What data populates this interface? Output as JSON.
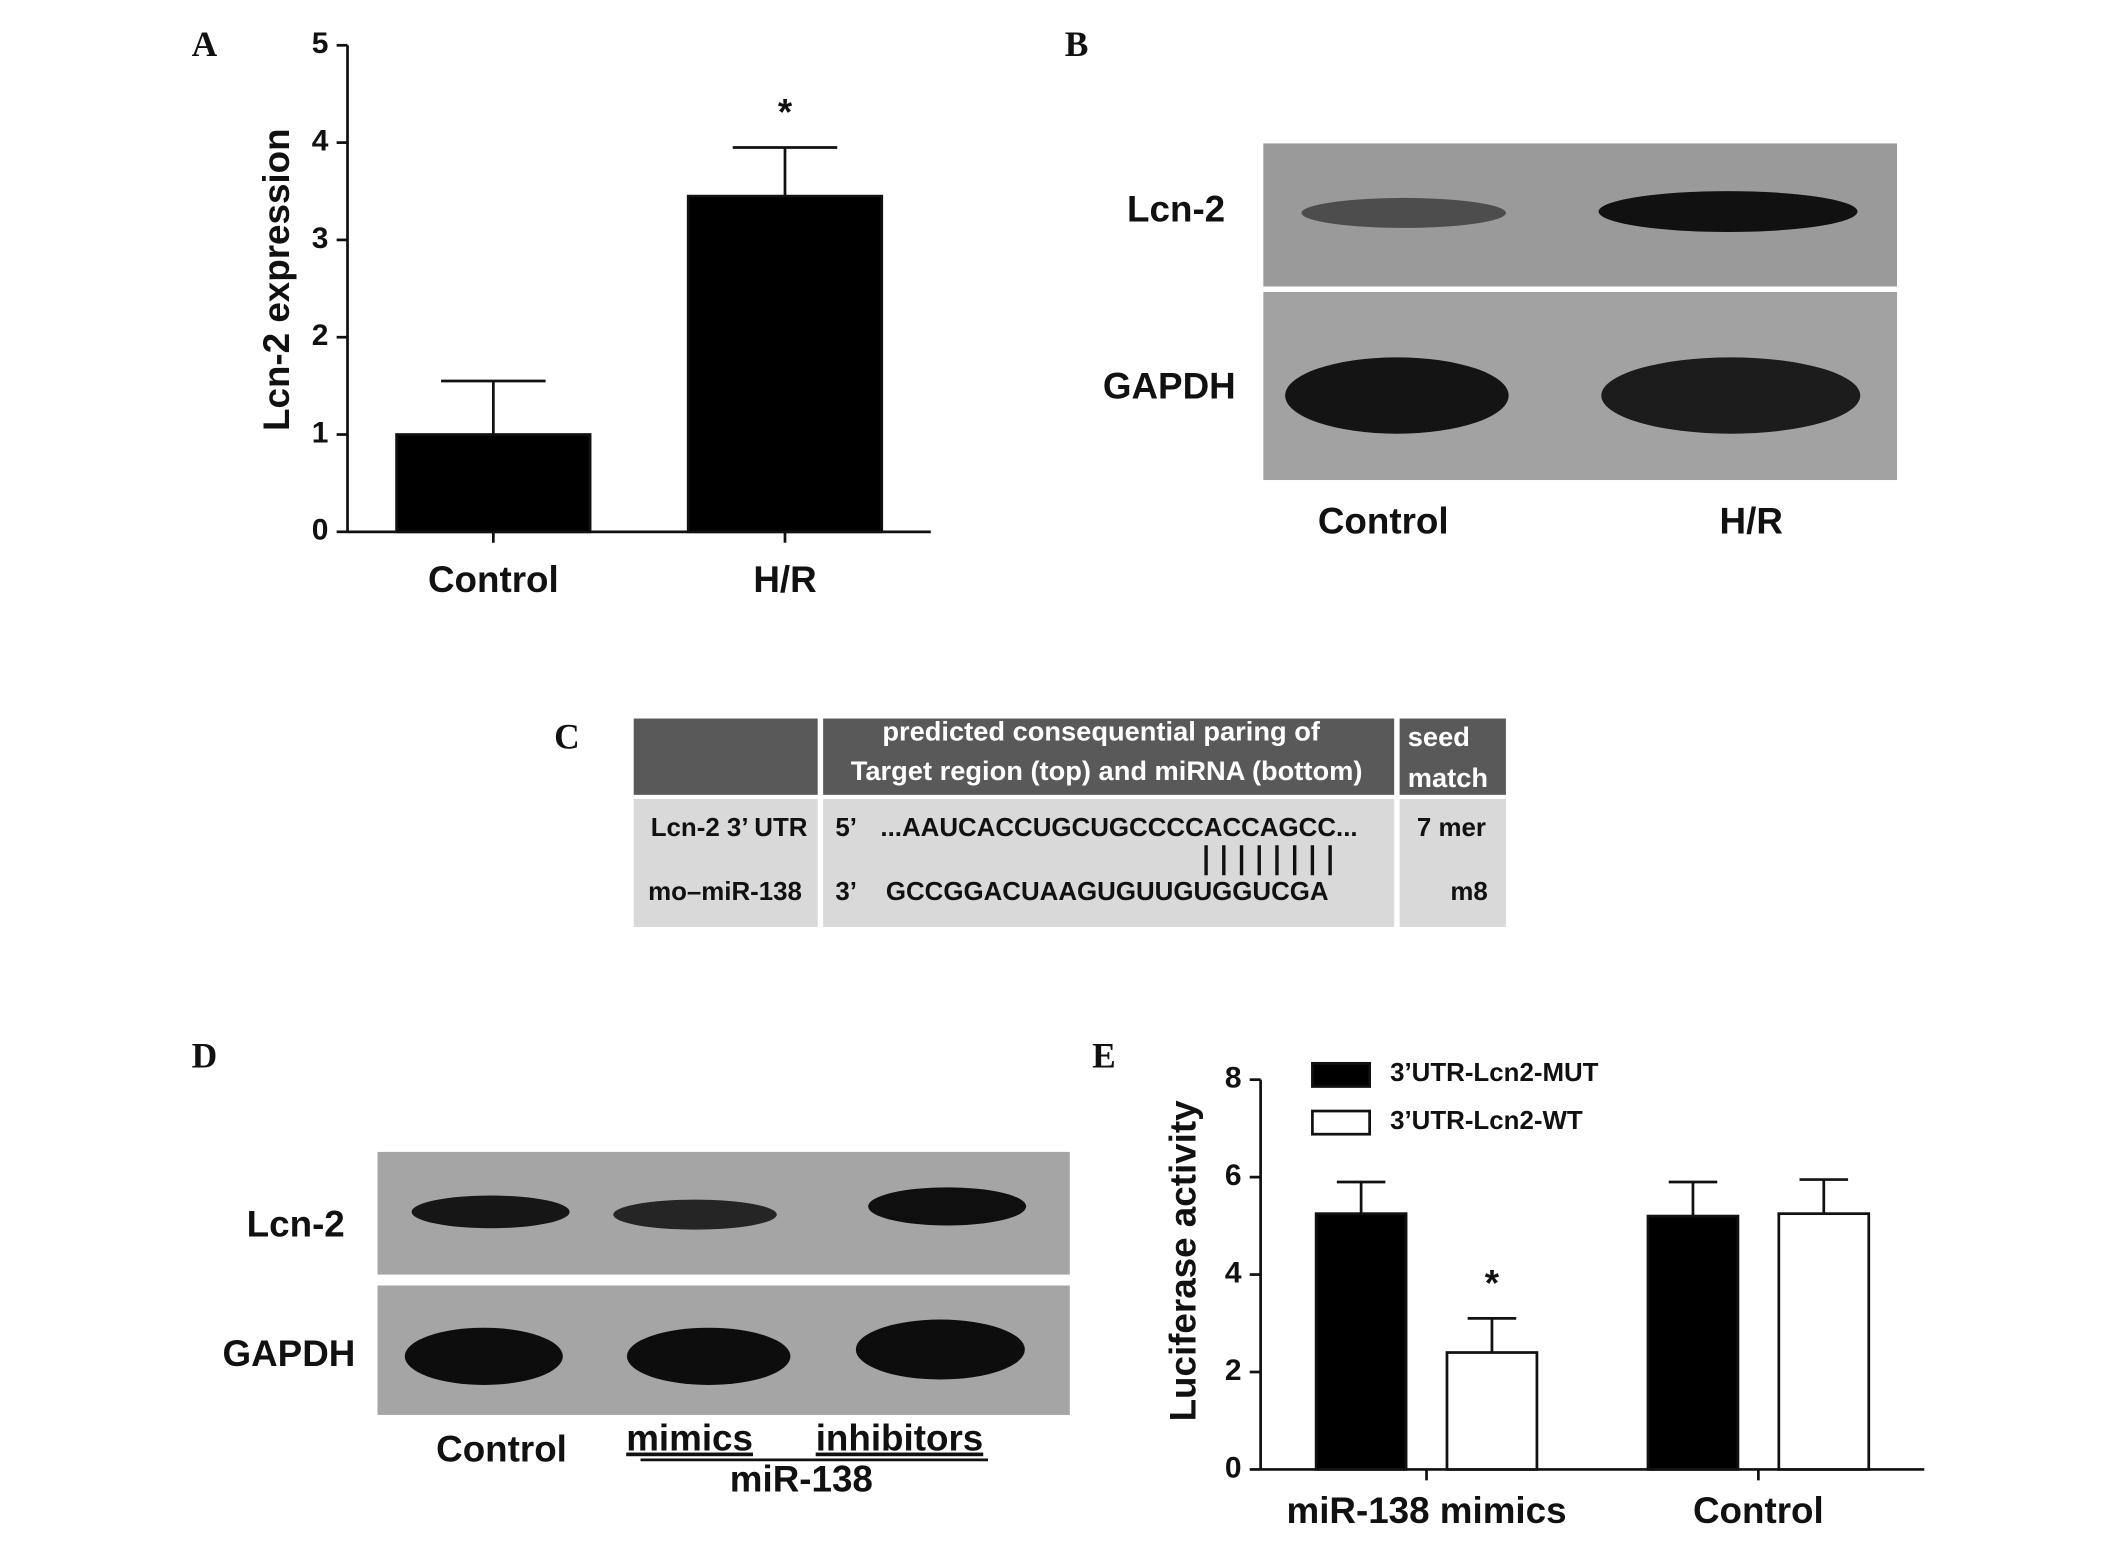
{
  "panels": [
    "A",
    "B",
    "C",
    "D",
    "E"
  ],
  "chart_data": [
    {
      "type": "bar",
      "categories": [
        "Control",
        "H/R"
      ],
      "values": [
        1.0,
        3.45
      ],
      "errors": [
        0.55,
        0.5
      ],
      "color": "#000000",
      "y_label": "Lcn-2  expression",
      "ylim": [
        0,
        5
      ],
      "yticks": [
        0,
        1,
        2,
        3,
        4,
        5
      ],
      "annotation": "*"
    },
    {
      "type": "bar",
      "categories": [
        "miR-138 mimics",
        "Control"
      ],
      "series": [
        {
          "name": "3’UTR-Lcn2-MUT",
          "color": "#000000",
          "values": [
            5.25,
            5.2
          ],
          "errors": [
            0.65,
            0.7
          ]
        },
        {
          "name": "3’UTR-Lcn2-WT",
          "color": "#ffffff",
          "values": [
            2.4,
            5.25
          ],
          "errors": [
            0.7,
            0.7
          ]
        }
      ],
      "y_label": "Luciferase activity",
      "ylim": [
        0,
        8
      ],
      "yticks": [
        0,
        2,
        4,
        6,
        8
      ],
      "legend": "top-left",
      "annotation": "*"
    }
  ],
  "blot_b": {
    "rows": [
      "Lcn-2",
      "GAPDH"
    ],
    "lanes": [
      "Control",
      "H/R"
    ]
  },
  "table_c": {
    "header": [
      [
        "predicted consequential paring of",
        "Target region (top) and miRNA (bottom)"
      ],
      [
        "seed",
        "match"
      ]
    ],
    "rows": [
      [
        "Lcn-2 3’ UTR",
        "5’",
        "...AAUCACCUGCUGCCCCACCAGCC...",
        "7 mer"
      ],
      [
        "mo–miR-138",
        "3’",
        "GCCGGACUAAGUGUUGUGGUCGA",
        "m8"
      ]
    ]
  },
  "blot_d": {
    "rows": [
      "Lcn-2",
      "GAPDH"
    ],
    "lanes": [
      "Control",
      "mimics",
      "inhibitors"
    ],
    "group": "miR-138"
  }
}
